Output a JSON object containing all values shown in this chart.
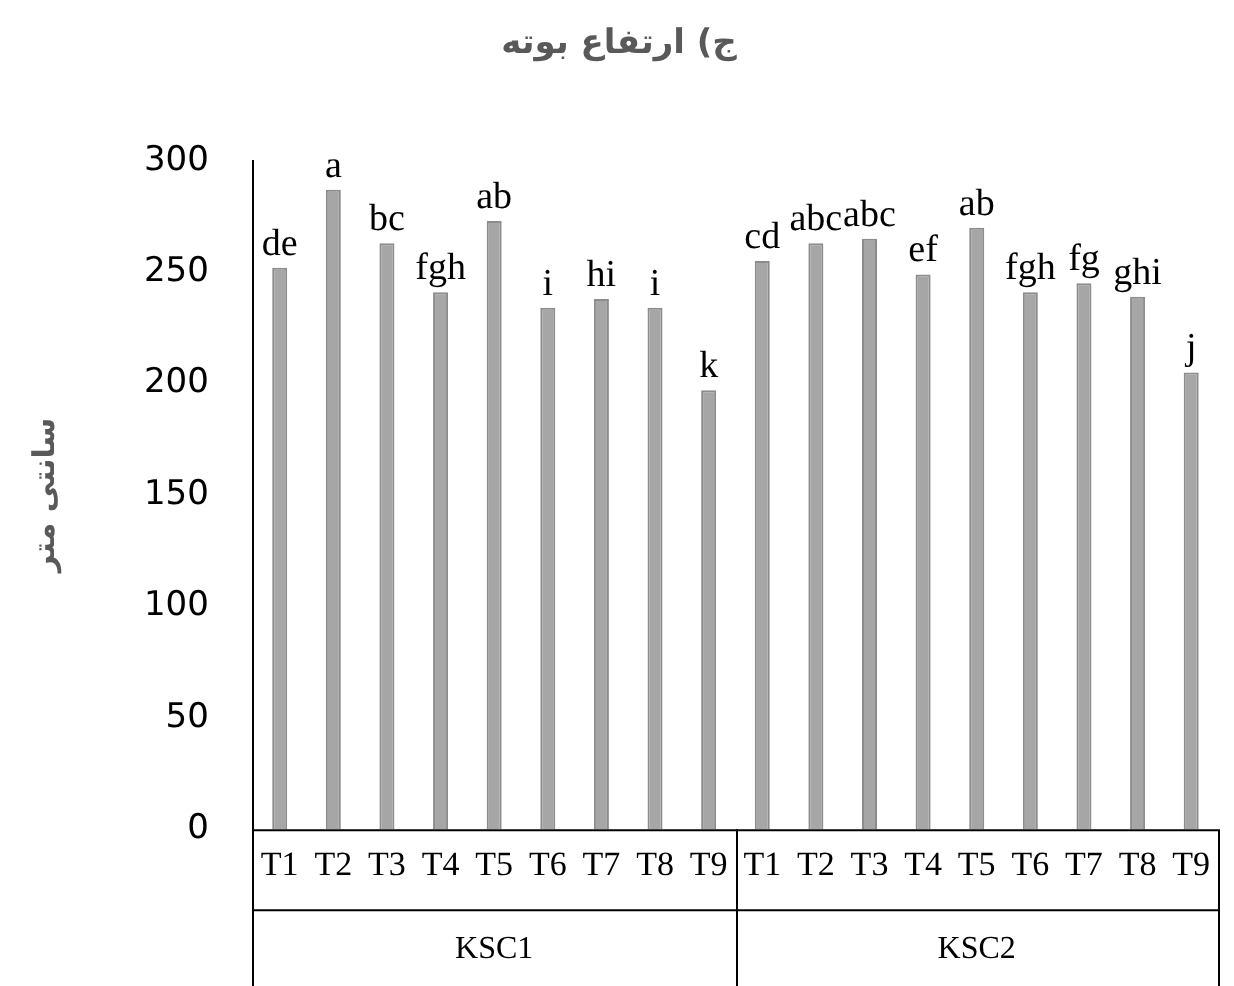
{
  "chart_data": {
    "type": "bar",
    "title": "ج) ارتفاع بوته",
    "ylabel": "سانتی متر",
    "categories": [
      "T1",
      "T2",
      "T3",
      "T4",
      "T5",
      "T6",
      "T7",
      "T8",
      "T9",
      "T1",
      "T2",
      "T3",
      "T4",
      "T5",
      "T6",
      "T7",
      "T8",
      "T9"
    ],
    "values": [
      252,
      287,
      263,
      241,
      273,
      234,
      238,
      234,
      197,
      255,
      263,
      265,
      249,
      270,
      241,
      245,
      239,
      205
    ],
    "value_labels": [
      "de",
      "a",
      "bc",
      "fgh",
      "ab",
      "i",
      "hi",
      "i",
      "k",
      "cd",
      "abc",
      "abc",
      "ef",
      "ab",
      "fgh",
      "fg",
      "ghi",
      "j"
    ],
    "color": "#a6a6a6",
    "annotations": [
      "KSC1",
      "KSC2"
    ],
    "ylim": [
      0,
      300
    ],
    "yticks": [
      0,
      50,
      100,
      150,
      200,
      250,
      300
    ],
    "grid": false,
    "legend": false
  }
}
